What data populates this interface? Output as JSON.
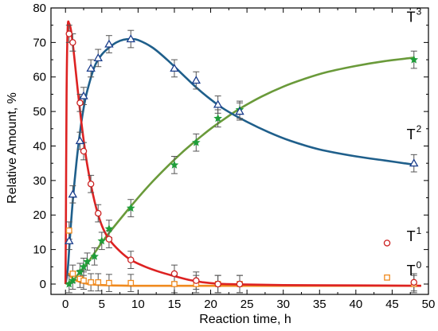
{
  "chart_data": {
    "type": "line",
    "xlabel": "Reaction time, h",
    "ylabel": "Relative Amount, %",
    "xlim": [
      -2,
      50
    ],
    "ylim": [
      -3,
      80
    ],
    "xticks": [
      0,
      5,
      10,
      15,
      20,
      25,
      30,
      35,
      40,
      45,
      50
    ],
    "yticks": [
      0,
      10,
      20,
      30,
      40,
      50,
      60,
      70,
      80
    ],
    "grid": false,
    "error_bar_halfwidth": 2.5,
    "series": [
      {
        "name": "T",
        "sup": "1",
        "color": "#cc2222",
        "line_color": "#dd2222",
        "marker": "circle",
        "points": [
          {
            "x": 0.5,
            "y": 72.5
          },
          {
            "x": 1,
            "y": 70
          },
          {
            "x": 2,
            "y": 52.5
          },
          {
            "x": 2.5,
            "y": 38.5
          },
          {
            "x": 3.5,
            "y": 29
          },
          {
            "x": 4.5,
            "y": 20.5
          },
          {
            "x": 6,
            "y": 13
          },
          {
            "x": 9,
            "y": 7
          },
          {
            "x": 15,
            "y": 3
          },
          {
            "x": 18,
            "y": 1
          },
          {
            "x": 21,
            "y": 0
          },
          {
            "x": 24,
            "y": 0
          },
          {
            "x": 48,
            "y": 0.5
          }
        ],
        "curve": [
          {
            "x": 0,
            "y": 0
          },
          {
            "x": 0.05,
            "y": 15
          },
          {
            "x": 0.15,
            "y": 55
          },
          {
            "x": 0.3,
            "y": 74
          },
          {
            "x": 0.5,
            "y": 75.5
          },
          {
            "x": 0.8,
            "y": 73
          },
          {
            "x": 1.2,
            "y": 66
          },
          {
            "x": 1.7,
            "y": 56
          },
          {
            "x": 2.3,
            "y": 45
          },
          {
            "x": 3,
            "y": 34.5
          },
          {
            "x": 4,
            "y": 24
          },
          {
            "x": 5,
            "y": 17
          },
          {
            "x": 6,
            "y": 13
          },
          {
            "x": 7.5,
            "y": 9.5
          },
          {
            "x": 9,
            "y": 7
          },
          {
            "x": 11,
            "y": 5
          },
          {
            "x": 13,
            "y": 3.5
          },
          {
            "x": 15,
            "y": 2.3
          },
          {
            "x": 17,
            "y": 1.2
          },
          {
            "x": 19,
            "y": 0.5
          },
          {
            "x": 21,
            "y": 0.1
          },
          {
            "x": 24,
            "y": -0.1
          },
          {
            "x": 30,
            "y": -0.3
          },
          {
            "x": 40,
            "y": -0.4
          },
          {
            "x": 49,
            "y": -0.5
          }
        ]
      },
      {
        "name": "T",
        "sup": "2",
        "color": "#1a3d8c",
        "line_color": "#1f5f8b",
        "marker": "triangle",
        "points": [
          {
            "x": 0.5,
            "y": 12.5
          },
          {
            "x": 1,
            "y": 26
          },
          {
            "x": 2,
            "y": 41.5
          },
          {
            "x": 2.5,
            "y": 54.5
          },
          {
            "x": 3.5,
            "y": 62.5
          },
          {
            "x": 4.5,
            "y": 65.5
          },
          {
            "x": 6,
            "y": 69.5
          },
          {
            "x": 9,
            "y": 71
          },
          {
            "x": 15,
            "y": 62.5
          },
          {
            "x": 18,
            "y": 59
          },
          {
            "x": 21,
            "y": 52
          },
          {
            "x": 24,
            "y": 50
          },
          {
            "x": 48,
            "y": 35
          }
        ],
        "curve": [
          {
            "x": 0,
            "y": 0
          },
          {
            "x": 0.3,
            "y": 4
          },
          {
            "x": 0.6,
            "y": 13
          },
          {
            "x": 1,
            "y": 24
          },
          {
            "x": 1.5,
            "y": 35
          },
          {
            "x": 2,
            "y": 44
          },
          {
            "x": 2.5,
            "y": 51
          },
          {
            "x": 3,
            "y": 56
          },
          {
            "x": 4,
            "y": 63
          },
          {
            "x": 5,
            "y": 66.5
          },
          {
            "x": 6,
            "y": 68.5
          },
          {
            "x": 7,
            "y": 70
          },
          {
            "x": 8,
            "y": 70.8
          },
          {
            "x": 9,
            "y": 71
          },
          {
            "x": 10,
            "y": 70.7
          },
          {
            "x": 12,
            "y": 68.5
          },
          {
            "x": 14,
            "y": 65
          },
          {
            "x": 16,
            "y": 61
          },
          {
            "x": 18,
            "y": 57
          },
          {
            "x": 20,
            "y": 53.5
          },
          {
            "x": 22,
            "y": 50.5
          },
          {
            "x": 25,
            "y": 47
          },
          {
            "x": 28,
            "y": 44
          },
          {
            "x": 31,
            "y": 41.5
          },
          {
            "x": 35,
            "y": 39
          },
          {
            "x": 40,
            "y": 37
          },
          {
            "x": 44,
            "y": 35.8
          },
          {
            "x": 48,
            "y": 34.6
          }
        ]
      },
      {
        "name": "T",
        "sup": "3",
        "color": "#1e9e3a",
        "line_color": "#6a9a3a",
        "marker": "star",
        "points": [
          {
            "x": 0.5,
            "y": 0
          },
          {
            "x": 1,
            "y": 1
          },
          {
            "x": 2,
            "y": 3.5
          },
          {
            "x": 2.5,
            "y": 5
          },
          {
            "x": 3,
            "y": 6.5
          },
          {
            "x": 4,
            "y": 8
          },
          {
            "x": 5,
            "y": 12.5
          },
          {
            "x": 6,
            "y": 16
          },
          {
            "x": 9,
            "y": 22
          },
          {
            "x": 15,
            "y": 34.5
          },
          {
            "x": 18,
            "y": 41
          },
          {
            "x": 21,
            "y": 48
          },
          {
            "x": 24,
            "y": 50.5
          },
          {
            "x": 48,
            "y": 65
          }
        ],
        "curve": [
          {
            "x": 0,
            "y": 0
          },
          {
            "x": 1,
            "y": 1
          },
          {
            "x": 2,
            "y": 3.5
          },
          {
            "x": 3,
            "y": 6
          },
          {
            "x": 4,
            "y": 9
          },
          {
            "x": 5,
            "y": 12
          },
          {
            "x": 6,
            "y": 14.8
          },
          {
            "x": 8,
            "y": 20
          },
          {
            "x": 10,
            "y": 25
          },
          {
            "x": 12,
            "y": 29.7
          },
          {
            "x": 14,
            "y": 34
          },
          {
            "x": 16,
            "y": 38
          },
          {
            "x": 18,
            "y": 41.6
          },
          {
            "x": 20,
            "y": 45
          },
          {
            "x": 22,
            "y": 48
          },
          {
            "x": 24,
            "y": 50.8
          },
          {
            "x": 27,
            "y": 54.3
          },
          {
            "x": 30,
            "y": 57.2
          },
          {
            "x": 33,
            "y": 59.5
          },
          {
            "x": 36,
            "y": 61.4
          },
          {
            "x": 40,
            "y": 63.2
          },
          {
            "x": 44,
            "y": 64.6
          },
          {
            "x": 48,
            "y": 65.6
          }
        ]
      },
      {
        "name": "T",
        "sup": "0",
        "color": "#f08a1e",
        "line_color": "#f08a1e",
        "marker": "square",
        "points": [
          {
            "x": 0.5,
            "y": 15.5
          },
          {
            "x": 1,
            "y": 3
          },
          {
            "x": 2,
            "y": 1.5
          },
          {
            "x": 2.5,
            "y": 1
          },
          {
            "x": 3.5,
            "y": 0.5
          },
          {
            "x": 4.5,
            "y": 0.5
          },
          {
            "x": 6,
            "y": 0.3
          },
          {
            "x": 9,
            "y": 0.3
          },
          {
            "x": 15,
            "y": 0
          },
          {
            "x": 18,
            "y": 0
          },
          {
            "x": 21,
            "y": 0
          },
          {
            "x": 24,
            "y": 0
          },
          {
            "x": 48,
            "y": 0
          }
        ],
        "curve": [
          {
            "x": 0,
            "y": 0
          },
          {
            "x": 0.1,
            "y": 1.5
          },
          {
            "x": 0.25,
            "y": 3
          },
          {
            "x": 0.5,
            "y": 2.8
          },
          {
            "x": 1,
            "y": 1.6
          },
          {
            "x": 2,
            "y": 0.6
          },
          {
            "x": 3,
            "y": 0.1
          },
          {
            "x": 5,
            "y": -0.3
          },
          {
            "x": 10,
            "y": -0.5
          },
          {
            "x": 20,
            "y": -0.5
          },
          {
            "x": 35,
            "y": -0.5
          },
          {
            "x": 49,
            "y": -0.5
          }
        ]
      }
    ],
    "series_labels": [
      {
        "text": "T",
        "sup": "3",
        "near": [
          47,
          76
        ]
      },
      {
        "text": "T",
        "sup": "2",
        "near": [
          47,
          42
        ]
      },
      {
        "text": "T",
        "sup": "1",
        "near": [
          47,
          12.5
        ]
      },
      {
        "text": "T",
        "sup": "0",
        "near": [
          47,
          2.5
        ]
      }
    ]
  }
}
